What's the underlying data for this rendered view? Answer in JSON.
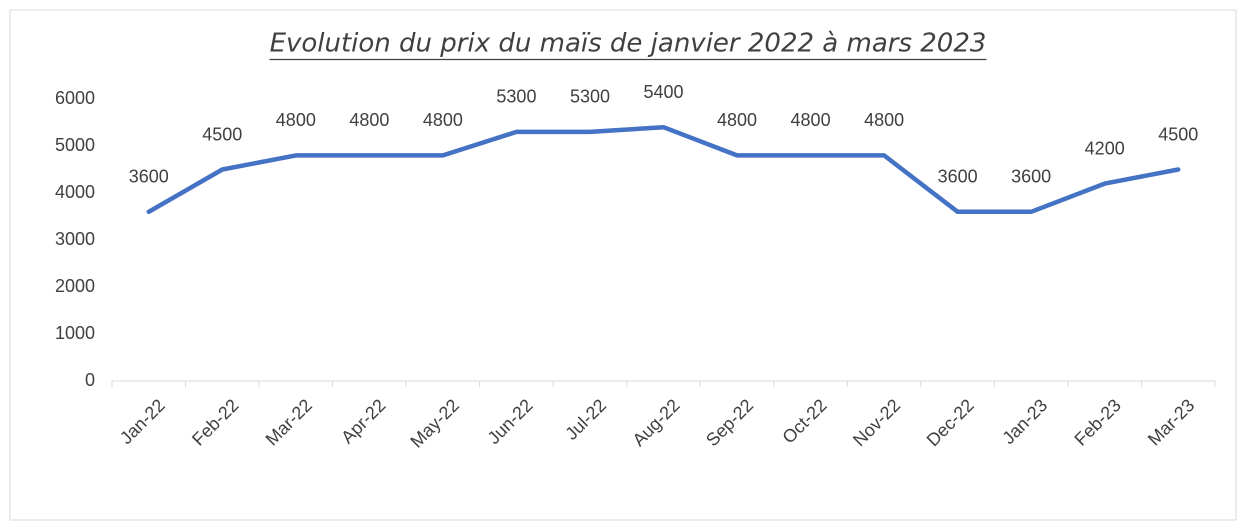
{
  "chart_data": {
    "type": "line",
    "title": "Evolution du prix du maïs de janvier 2022 à mars 2023",
    "categories": [
      "Jan-22",
      "Feb-22",
      "Mar-22",
      "Apr-22",
      "May-22",
      "Jun-22",
      "Jul-22",
      "Aug-22",
      "Sep-22",
      "Oct-22",
      "Nov-22",
      "Dec-22",
      "Jan-23",
      "Feb-23",
      "Mar-23"
    ],
    "values": [
      3600,
      4500,
      4800,
      4800,
      4800,
      5300,
      5300,
      5400,
      4800,
      4800,
      4800,
      3600,
      3600,
      4200,
      4500
    ],
    "color": "#4472c4",
    "ylim": [
      0,
      6000
    ],
    "yticks": [
      0,
      1000,
      2000,
      3000,
      4000,
      5000,
      6000
    ],
    "grid": false
  }
}
